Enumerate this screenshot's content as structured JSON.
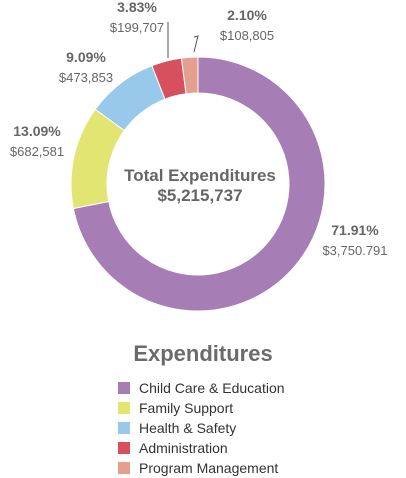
{
  "chart_data": {
    "type": "pie",
    "center_label": {
      "title": "Total Expenditures",
      "total": "$5,215,737"
    },
    "slices": [
      {
        "name": "Child Care & Education",
        "value": 3750791,
        "percent": 71.91,
        "percent_label": "71.91%",
        "amount_label": "$3,750.791",
        "color": "#a77db6"
      },
      {
        "name": "Family Support",
        "value": 682581,
        "percent": 13.09,
        "percent_label": "13.09%",
        "amount_label": "$682,581",
        "color": "#e3e573"
      },
      {
        "name": "Health & Safety",
        "value": 473853,
        "percent": 9.09,
        "percent_label": "9.09%",
        "amount_label": "$473,853",
        "color": "#99c9ea"
      },
      {
        "name": "Administration",
        "value": 199707,
        "percent": 3.83,
        "percent_label": "3.83%",
        "amount_label": "$199,707",
        "color": "#d7505e"
      },
      {
        "name": "Program Management",
        "value": 108805,
        "percent": 2.1,
        "percent_label": "2.10%",
        "amount_label": "$108,805",
        "color": "#e3a08f"
      }
    ],
    "legend": {
      "title": "Expenditures",
      "position": "bottom"
    }
  }
}
